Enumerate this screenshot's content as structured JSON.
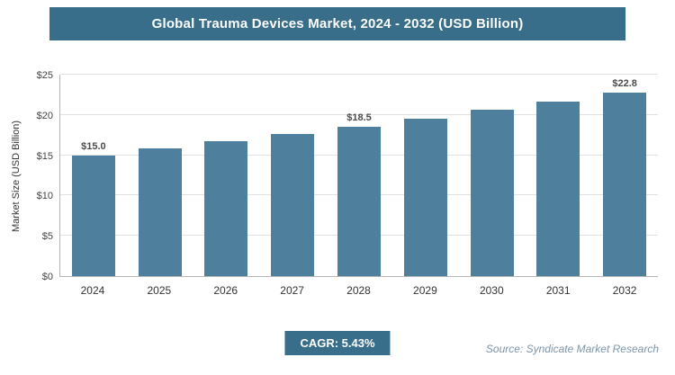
{
  "title": "Global Trauma Devices Market, 2024 - 2032 (USD Billion)",
  "chart_data": {
    "type": "bar",
    "title": "Global Trauma Devices Market, 2024 - 2032 (USD Billion)",
    "categories": [
      "2024",
      "2025",
      "2026",
      "2027",
      "2028",
      "2029",
      "2030",
      "2031",
      "2032"
    ],
    "values": [
      15.0,
      15.8,
      16.7,
      17.6,
      18.5,
      19.5,
      20.6,
      21.7,
      22.8
    ],
    "data_labels": [
      "$15.0",
      null,
      null,
      null,
      "$18.5",
      null,
      null,
      null,
      "$22.8"
    ],
    "xlabel": "",
    "ylabel": "Market Size (USD Billion)",
    "ylim": [
      0,
      25
    ],
    "yticks": [
      {
        "value": 0,
        "label": "$0"
      },
      {
        "value": 5,
        "label": "$5"
      },
      {
        "value": 10,
        "label": "$10"
      },
      {
        "value": 15,
        "label": "$15"
      },
      {
        "value": 20,
        "label": "$20"
      },
      {
        "value": 25,
        "label": "$25"
      }
    ],
    "grid": true,
    "legend": false,
    "bar_color": "#4e7f9c"
  },
  "footer": {
    "cagr_label": "CAGR: 5.43%",
    "source": "Source: Syndicate Market Research"
  },
  "colors": {
    "banner_bg": "#386e8a",
    "badge_bg": "#386e8a",
    "bar": "#4e7f9c"
  }
}
